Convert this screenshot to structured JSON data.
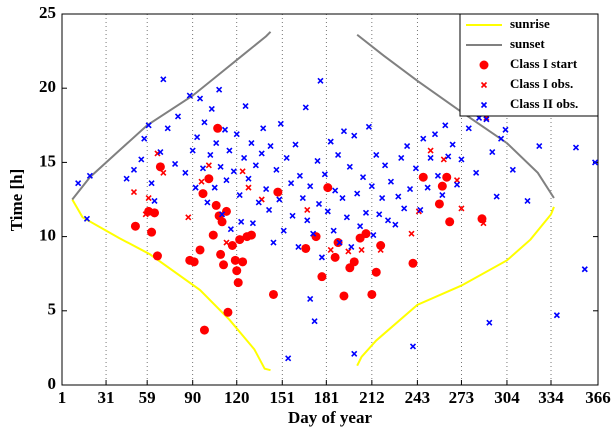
{
  "chart_data": {
    "type": "scatter",
    "xlabel": "Day of year",
    "ylabel": "Time [h]",
    "xlim": [
      1,
      366
    ],
    "ylim": [
      0,
      25
    ],
    "xticks": [
      1,
      31,
      59,
      90,
      120,
      151,
      181,
      212,
      243,
      273,
      304,
      334,
      366
    ],
    "yticks": [
      0,
      5,
      10,
      15,
      20,
      25
    ],
    "grid": "x",
    "legend": "upper right",
    "series": [
      {
        "name": "sunrise",
        "color": "#ffff00",
        "style": "line",
        "x": [
          8,
          15,
          31,
          40,
          61,
          95,
          115,
          132,
          139,
          143,
          null,
          202,
          205,
          215,
          243,
          273,
          304,
          320,
          334,
          336
        ],
        "values": [
          12.5,
          11.3,
          10.4,
          9.9,
          8.8,
          6.4,
          4.4,
          2.4,
          1.1,
          1.0,
          null,
          1.3,
          1.9,
          3.0,
          5.4,
          6.7,
          8.4,
          9.8,
          11.5,
          12.0
        ]
      },
      {
        "name": "sunset",
        "color": "#808080",
        "style": "line",
        "x": [
          8,
          20,
          40,
          59,
          90,
          110,
          125,
          140,
          143,
          null,
          202,
          220,
          243,
          273,
          304,
          325,
          336
        ],
        "values": [
          12.5,
          14.0,
          15.8,
          17.5,
          19.5,
          21.1,
          22.3,
          23.5,
          23.8,
          null,
          23.6,
          22.2,
          20.5,
          18.4,
          16.3,
          14.3,
          12.6
        ]
      },
      {
        "name": "Class I start",
        "color": "#ff0000",
        "style": "circle",
        "x": [
          51,
          60,
          64,
          62,
          66,
          68,
          88,
          91,
          95,
          97,
          98,
          101,
          104,
          106,
          107,
          108,
          109,
          110,
          111,
          113,
          114,
          117,
          119,
          120,
          121,
          122,
          124,
          127,
          130,
          145,
          148,
          167,
          174,
          178,
          182,
          187,
          189,
          193,
          197,
          200,
          204,
          208,
          212,
          215,
          218,
          240,
          247,
          258,
          260,
          263,
          265,
          287
        ],
        "values": [
          10.7,
          11.7,
          11.6,
          10.3,
          8.7,
          14.7,
          8.4,
          8.3,
          9.1,
          12.9,
          3.7,
          13.9,
          10.1,
          12.1,
          17.3,
          11.4,
          8.8,
          11.0,
          8.1,
          11.7,
          4.9,
          9.4,
          8.4,
          7.7,
          6.9,
          9.8,
          8.3,
          10.0,
          10.1,
          6.1,
          13.0,
          9.2,
          10.0,
          7.3,
          13.3,
          8.6,
          9.6,
          6.0,
          7.9,
          8.3,
          9.9,
          10.2,
          6.1,
          7.6,
          9.4,
          8.2,
          14.0,
          12.2,
          13.4,
          14.0,
          11.0,
          11.2
        ]
      },
      {
        "name": "Class I obs.",
        "color": "#ff0000",
        "style": "x",
        "x": [
          50,
          58,
          60,
          66,
          70,
          87,
          96,
          101,
          113,
          124,
          128,
          137,
          168,
          184,
          196,
          205,
          218,
          239,
          244,
          252,
          261,
          270,
          273,
          288,
          290
        ],
        "values": [
          13.0,
          11.5,
          12.6,
          15.6,
          14.3,
          11.3,
          13.7,
          14.8,
          9.6,
          14.4,
          13.3,
          12.5,
          11.8,
          9.1,
          9.0,
          9.1,
          9.1,
          10.2,
          11.7,
          15.8,
          15.2,
          13.8,
          11.9,
          10.9,
          18.0
        ]
      },
      {
        "name": "Class II obs.",
        "color": "#0000ff",
        "style": "x",
        "x": [
          12,
          18,
          20,
          45,
          50,
          55,
          57,
          60,
          62,
          64,
          68,
          70,
          73,
          78,
          80,
          85,
          88,
          90,
          92,
          93,
          95,
          97,
          98,
          100,
          102,
          103,
          105,
          106,
          108,
          109,
          110,
          112,
          113,
          115,
          116,
          118,
          120,
          122,
          123,
          125,
          126,
          128,
          130,
          131,
          133,
          135,
          137,
          138,
          140,
          142,
          143,
          145,
          147,
          149,
          150,
          152,
          154,
          155,
          157,
          158,
          160,
          162,
          163,
          165,
          167,
          168,
          170,
          170,
          172,
          173,
          175,
          176,
          177,
          178,
          180,
          182,
          184,
          186,
          187,
          189,
          190,
          192,
          193,
          195,
          197,
          198,
          200,
          200,
          202,
          204,
          206,
          208,
          210,
          212,
          213,
          215,
          217,
          219,
          221,
          223,
          225,
          228,
          230,
          232,
          234,
          236,
          238,
          240,
          242,
          245,
          247,
          250,
          252,
          255,
          257,
          260,
          262,
          264,
          267,
          270,
          273,
          278,
          283,
          285,
          290,
          292,
          294,
          297,
          300,
          303,
          308,
          318,
          326,
          338,
          351,
          357,
          364
        ],
        "values": [
          13.6,
          11.2,
          14.1,
          13.9,
          14.5,
          15.2,
          16.6,
          17.5,
          13.6,
          12.4,
          15.7,
          20.6,
          17.3,
          14.9,
          18.1,
          14.3,
          19.5,
          15.8,
          13.3,
          16.7,
          19.3,
          14.6,
          17.7,
          12.3,
          15.5,
          18.6,
          13.3,
          16.3,
          19.9,
          14.7,
          11.5,
          17.2,
          13.8,
          15.8,
          10.5,
          14.4,
          16.9,
          12.8,
          11.0,
          15.3,
          18.8,
          13.9,
          16.3,
          10.9,
          14.8,
          12.3,
          15.6,
          17.3,
          13.2,
          11.8,
          16.1,
          9.6,
          14.5,
          12.5,
          17.6,
          10.4,
          15.3,
          1.8,
          13.6,
          11.4,
          16.2,
          9.3,
          14.1,
          12.6,
          18.7,
          11.1,
          5.8,
          13.4,
          10.2,
          4.3,
          15.1,
          12.2,
          20.5,
          8.6,
          14.2,
          11.7,
          16.4,
          10.4,
          13.1,
          15.5,
          9.6,
          12.6,
          17.1,
          11.3,
          14.7,
          9.3,
          16.8,
          2.1,
          12.9,
          10.7,
          14.0,
          11.6,
          17.4,
          13.4,
          10.1,
          15.5,
          11.5,
          12.6,
          14.8,
          11.1,
          13.7,
          10.8,
          12.7,
          15.3,
          11.9,
          16.1,
          13.2,
          2.6,
          14.6,
          11.8,
          16.6,
          13.3,
          15.3,
          16.9,
          14.1,
          12.8,
          17.5,
          15.4,
          16.2,
          13.5,
          15.2,
          17.3,
          14.3,
          18.0,
          17.9,
          4.2,
          15.7,
          12.7,
          16.6,
          17.2,
          14.5,
          12.4,
          16.1,
          4.7,
          16.0,
          7.8,
          15.0
        ]
      }
    ]
  }
}
